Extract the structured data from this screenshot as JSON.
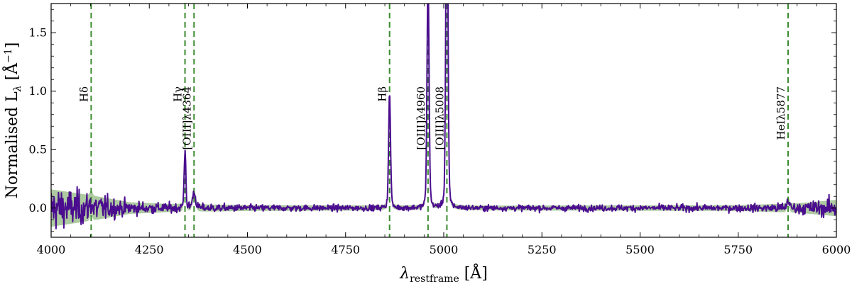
{
  "chart_data": {
    "type": "line",
    "title": "",
    "xlabel": "λ",
    "xlabel_sub": "restframe",
    "xlabel_unit": " [Å]",
    "ylabel": "Normalised L",
    "ylabel_sub": "λ",
    "ylabel_unit": " [Å",
    "ylabel_unit_sup": "−1",
    "ylabel_unit_close": "]",
    "xlim": [
      4000,
      6000
    ],
    "ylim": [
      -0.25,
      1.75
    ],
    "grid": false,
    "x_ticks": [
      4000,
      4250,
      4500,
      4750,
      5000,
      5250,
      5500,
      5750,
      6000
    ],
    "x_tick_labels": [
      "4000",
      "4250",
      "4500",
      "4750",
      "5000",
      "5250",
      "5500",
      "5750",
      "6000"
    ],
    "y_ticks": [
      0.0,
      0.5,
      1.0,
      1.5
    ],
    "y_tick_labels": [
      "0.0",
      "0.5",
      "1.0",
      "1.5"
    ],
    "colors": {
      "spectrum": "#4b0d8f",
      "error_band": "#93b882",
      "line_marker": "#3a8a2e"
    },
    "emission_lines": [
      {
        "name": "Hδ",
        "wavelength": 4102
      },
      {
        "name": "Hγ",
        "wavelength": 4341
      },
      {
        "name": "[OIII]λ4364",
        "wavelength": 4364
      },
      {
        "name": "Hβ",
        "wavelength": 4862
      },
      {
        "name": "[OIII]λ4960",
        "wavelength": 4960
      },
      {
        "name": "[OIII]λ5008",
        "wavelength": 5008
      },
      {
        "name": "HeIλ5877",
        "wavelength": 5877
      }
    ],
    "series": [
      {
        "peaks": [
          {
            "center": 4102,
            "amplitude": 0.05,
            "sigma": 3
          },
          {
            "center": 4341,
            "amplitude": 0.5,
            "sigma": 2.2
          },
          {
            "center": 4364,
            "amplitude": 0.13,
            "sigma": 4
          },
          {
            "center": 4862,
            "amplitude": 0.98,
            "sigma": 2.5
          },
          {
            "center": 4960,
            "amplitude": 2.0,
            "sigma": 2.6
          },
          {
            "center": 5008,
            "amplitude": 3.2,
            "sigma": 2.6
          },
          {
            "center": 5877,
            "amplitude": 0.07,
            "sigma": 3
          }
        ],
        "noise_level": [
          [
            4000,
            0.16
          ],
          [
            4100,
            0.11
          ],
          [
            4200,
            0.05
          ],
          [
            4300,
            0.035
          ],
          [
            4500,
            0.025
          ],
          [
            5000,
            0.02
          ],
          [
            5750,
            0.025
          ],
          [
            5900,
            0.04
          ],
          [
            6000,
            0.07
          ]
        ]
      }
    ]
  }
}
